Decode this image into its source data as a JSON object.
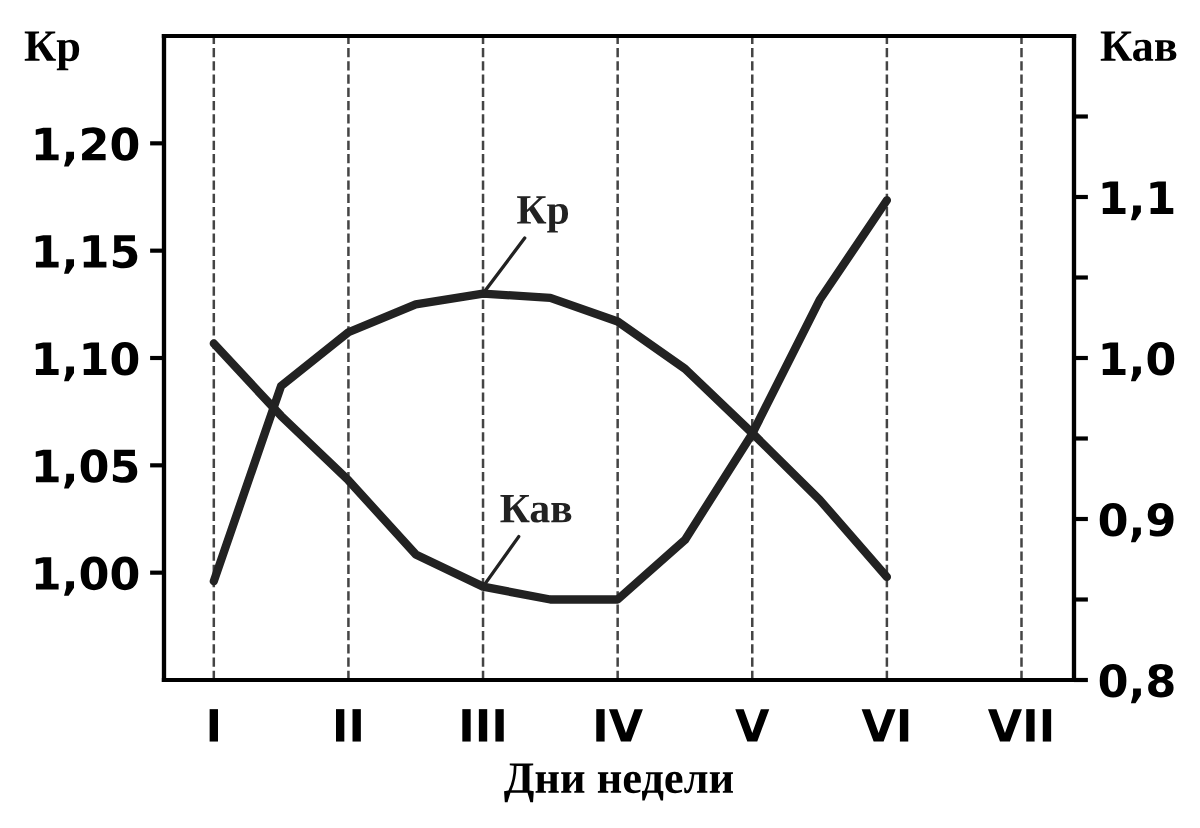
{
  "chart_data": {
    "type": "line",
    "xlabel": "Дни недели",
    "ylabel": "Кр",
    "y2label": "Кав",
    "categories": [
      "I",
      null,
      "II",
      null,
      "III",
      null,
      "IV",
      null,
      "V",
      null,
      "VI",
      null,
      "VII"
    ],
    "series": [
      {
        "name": "Кр",
        "color": "#222222",
        "values": [
          0.996,
          1.087,
          1.112,
          1.125,
          1.13,
          1.128,
          1.117,
          1.095,
          1.065,
          1.034,
          0.998,
          null,
          null
        ]
      },
      {
        "name": "Кав",
        "color": "#222222",
        "axis": "y2",
        "values": [
          1.009,
          0.964,
          0.924,
          0.878,
          0.858,
          0.85,
          0.85,
          0.887,
          0.953,
          1.036,
          1.098,
          null,
          null
        ]
      }
    ],
    "ylim": [
      0.95,
      1.25
    ],
    "yticks": [
      {
        "value": 1.0,
        "label": "1,00"
      },
      {
        "value": 1.05,
        "label": "1,05"
      },
      {
        "value": 1.1,
        "label": "1,10"
      },
      {
        "value": 1.15,
        "label": "1,15"
      },
      {
        "value": 1.2,
        "label": "1,20"
      }
    ],
    "y2lim": [
      0.8,
      1.2
    ],
    "y2ticks": [
      {
        "value": 0.8,
        "label": "0,8"
      },
      {
        "value": 0.85,
        "label": null
      },
      {
        "value": 0.9,
        "label": "0,9"
      },
      {
        "value": 0.95,
        "label": null
      },
      {
        "value": 1.0,
        "label": "1,0"
      },
      {
        "value": 1.05,
        "label": null
      },
      {
        "value": 1.1,
        "label": "1,1"
      },
      {
        "value": 1.15,
        "label": null
      }
    ],
    "grid": "x",
    "legend": false,
    "marker": "none",
    "line_style": "solid"
  }
}
